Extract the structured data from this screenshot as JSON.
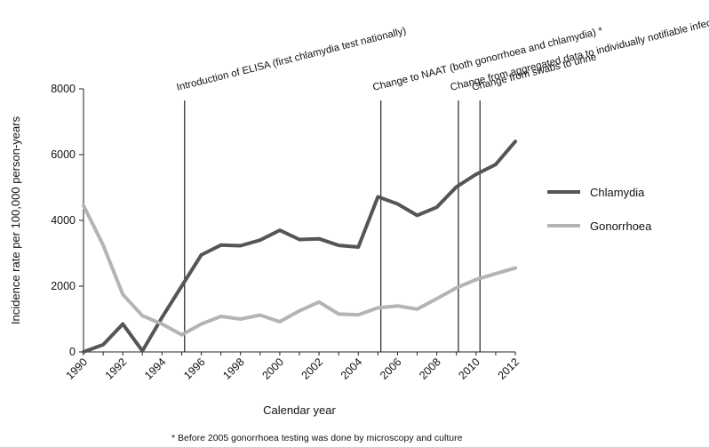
{
  "chart_data": {
    "type": "line",
    "title": "",
    "xlabel": "Calendar year",
    "ylabel": "Incidence rate per 100,000 person-years",
    "xlim": [
      1990,
      2012
    ],
    "ylim": [
      0,
      8000
    ],
    "x_ticks": [
      "1990",
      "1992",
      "1994",
      "1996",
      "1998",
      "2000",
      "2002",
      "2004",
      "2006",
      "2008",
      "2010",
      "2012"
    ],
    "y_ticks": [
      "0",
      "2000",
      "4000",
      "6000",
      "8000"
    ],
    "x": [
      1990,
      1991,
      1992,
      1993,
      1994,
      1995,
      1996,
      1997,
      1998,
      1999,
      2000,
      2001,
      2002,
      2003,
      2004,
      2005,
      2006,
      2007,
      2008,
      2009,
      2010,
      2011,
      2012
    ],
    "series": [
      {
        "name": "Chlamydia",
        "color": "#555555",
        "values": [
          0,
          220,
          850,
          30,
          1050,
          2000,
          2950,
          3250,
          3230,
          3400,
          3700,
          3420,
          3440,
          3240,
          3190,
          4720,
          4500,
          4150,
          4400,
          5020,
          5400,
          5700,
          6400
        ]
      },
      {
        "name": "Gonorrhoea",
        "color": "#b4b4b4",
        "values": [
          4450,
          3250,
          1750,
          1100,
          850,
          520,
          850,
          1080,
          1000,
          1120,
          920,
          1250,
          1520,
          1150,
          1130,
          1340,
          1400,
          1300,
          1620,
          1950,
          2200,
          2380,
          2550
        ]
      }
    ],
    "events": [
      {
        "year": 1995.15,
        "label": "Introduction of ELISA (first chlamydia test nationally)"
      },
      {
        "year": 2005.15,
        "label": "Change to NAAT (both gonorrhoea and chlamydia) *"
      },
      {
        "year": 2009.1,
        "label": "Change from aggregated data to individually notifiable infections"
      },
      {
        "year": 2010.2,
        "label": "Change from swabs to urine"
      }
    ],
    "legend_position": "right",
    "grid": false,
    "footnote": "* Before 2005 gonorrhoea testing was done by microscopy and culture"
  }
}
